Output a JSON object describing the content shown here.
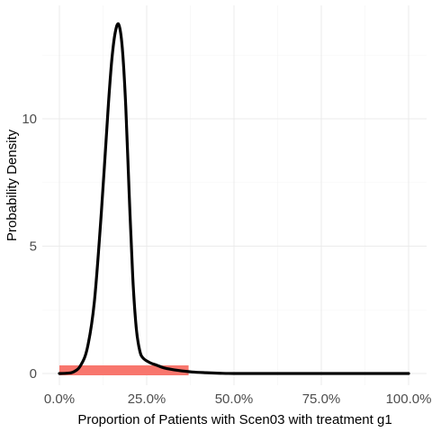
{
  "chart_data": {
    "type": "line",
    "title": "",
    "xlabel": "Proportion of Patients with Scen03 with treatment g1",
    "ylabel": "Probability Density",
    "xlim": [
      0,
      1
    ],
    "ylim": [
      0,
      14
    ],
    "x_ticks": [
      0,
      0.25,
      0.5,
      0.75,
      1.0
    ],
    "x_tick_labels": [
      "0.0%",
      "25.0%",
      "50.0%",
      "75.0%",
      "100.0%"
    ],
    "y_ticks": [
      0,
      5,
      10
    ],
    "y_tick_labels": [
      "0",
      "5",
      "10"
    ],
    "grid": true,
    "legend": "none",
    "series": [
      {
        "kind": "density",
        "color": "#000000",
        "x": [
          0.0,
          0.02,
          0.04,
          0.06,
          0.08,
          0.1,
          0.12,
          0.14,
          0.15,
          0.16,
          0.17,
          0.18,
          0.19,
          0.2,
          0.21,
          0.22,
          0.23,
          0.24,
          0.26,
          0.28,
          0.3,
          0.34,
          0.38,
          0.42,
          0.46,
          0.5,
          0.6,
          0.7,
          0.8,
          0.9,
          1.0
        ],
        "y": [
          0.0,
          0.01,
          0.06,
          0.3,
          1.0,
          2.8,
          6.3,
          10.5,
          12.3,
          13.4,
          13.7,
          12.8,
          10.5,
          7.0,
          3.8,
          1.8,
          0.9,
          0.6,
          0.42,
          0.32,
          0.22,
          0.12,
          0.06,
          0.03,
          0.01,
          0.0,
          0.0,
          0.0,
          0.0,
          0.0,
          0.0
        ]
      }
    ],
    "band": {
      "color": "#f8766d",
      "x_start": 0.0,
      "x_end": 0.37,
      "y_low": 0.0,
      "y_high": 0.32
    }
  }
}
